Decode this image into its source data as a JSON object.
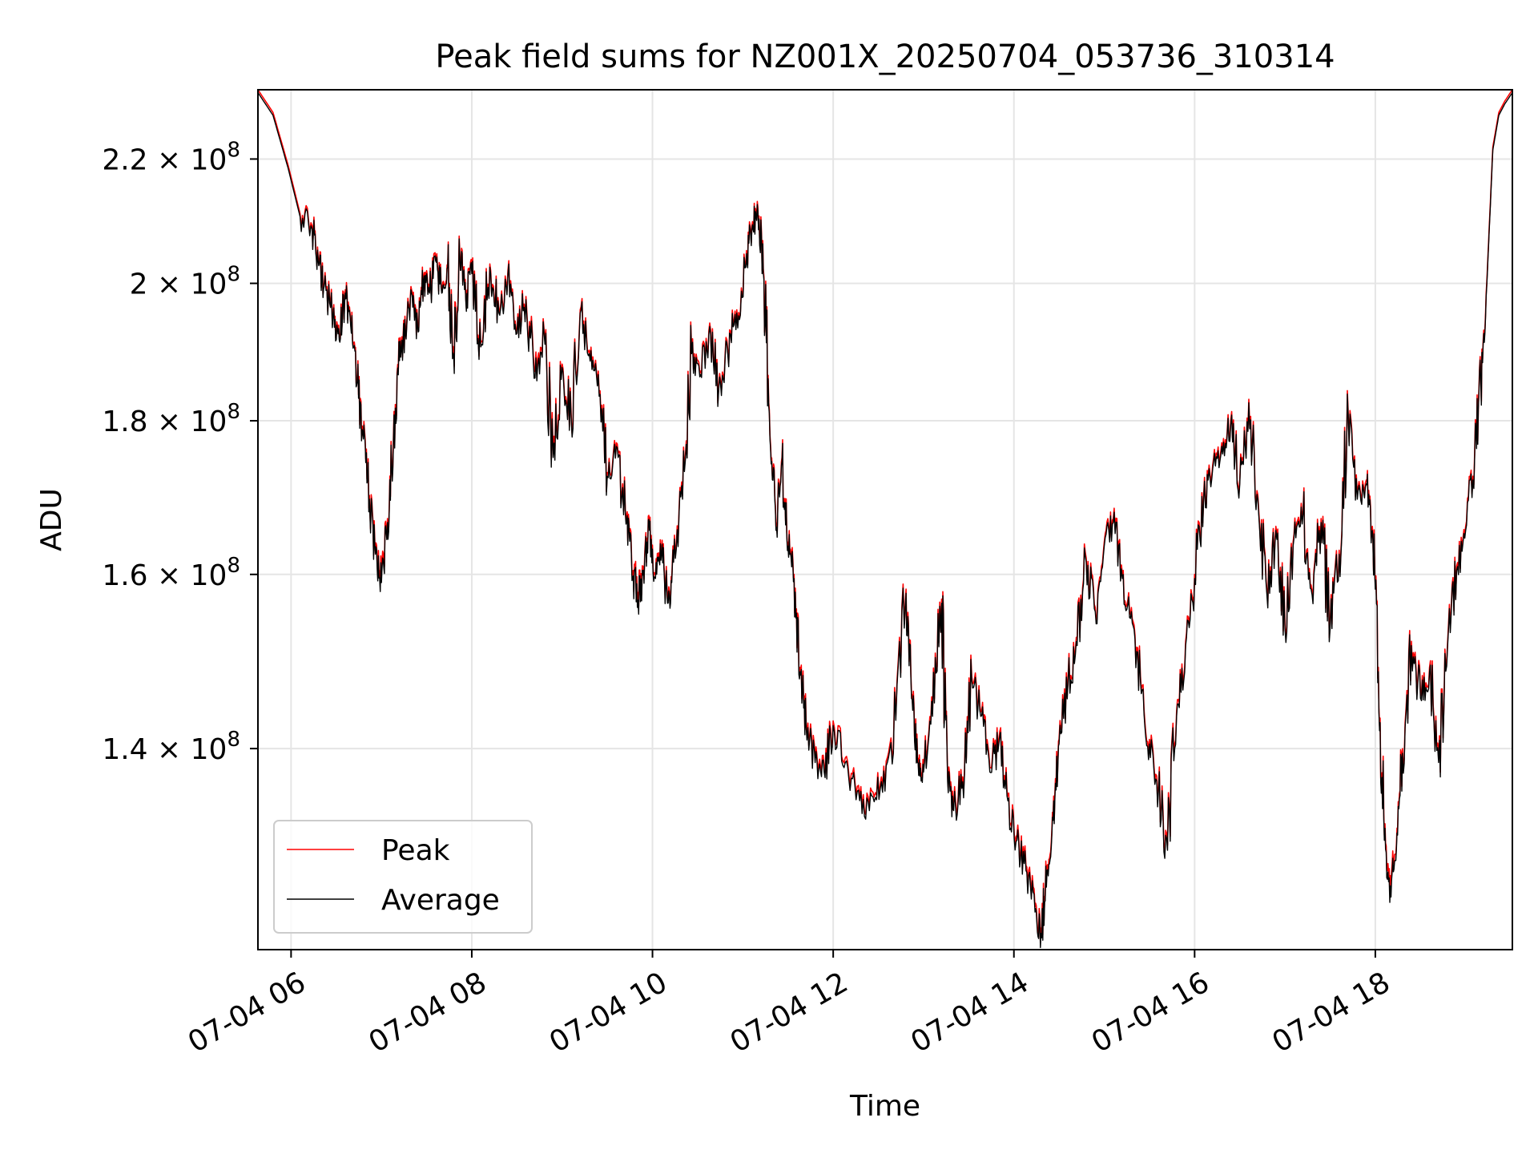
{
  "chart_data": {
    "type": "line",
    "title": "Peak field sums for NZ001X_20250704_053736_310314",
    "xlabel": "Time",
    "ylabel": "ADU",
    "y_scale": "log",
    "xlim": [
      "2025-07-04T05:38",
      "2025-07-04T19:31"
    ],
    "ylim": [
      120000000,
      232000000
    ],
    "grid": true,
    "legend_position": "lower-left",
    "x_ticks": [
      {
        "value": "2025-07-04T06:00",
        "label": "07-04 06"
      },
      {
        "value": "2025-07-04T08:00",
        "label": "07-04 08"
      },
      {
        "value": "2025-07-04T10:00",
        "label": "07-04 10"
      },
      {
        "value": "2025-07-04T12:00",
        "label": "07-04 12"
      },
      {
        "value": "2025-07-04T14:00",
        "label": "07-04 14"
      },
      {
        "value": "2025-07-04T16:00",
        "label": "07-04 16"
      },
      {
        "value": "2025-07-04T18:00",
        "label": "07-04 18"
      }
    ],
    "y_ticks": [
      {
        "value": 140000000,
        "mantissa": "1.4"
      },
      {
        "value": 160000000,
        "mantissa": "1.6"
      },
      {
        "value": 180000000,
        "mantissa": "1.8"
      },
      {
        "value": 200000000,
        "mantissa": "2"
      },
      {
        "value": 220000000,
        "mantissa": "2.2"
      }
    ],
    "y_tick_base": "10",
    "y_tick_exponent": "8",
    "series": [
      {
        "name": "Peak",
        "color": "#ff0000",
        "x": [
          "05:38",
          "05:48",
          "05:58",
          "06:06",
          "06:14",
          "06:18",
          "06:22",
          "06:28",
          "06:32",
          "06:36",
          "06:40",
          "06:44",
          "06:48",
          "06:52",
          "06:56",
          "07:00",
          "07:04",
          "07:08",
          "07:12",
          "07:16",
          "07:20",
          "07:24",
          "07:28",
          "07:32",
          "07:36",
          "07:40",
          "07:44",
          "07:48",
          "07:52",
          "07:56",
          "08:00",
          "08:06",
          "08:12",
          "08:18",
          "08:24",
          "08:30",
          "08:36",
          "08:42",
          "08:48",
          "08:54",
          "09:00",
          "09:06",
          "09:12",
          "09:18",
          "09:24",
          "09:30",
          "09:36",
          "09:42",
          "09:46",
          "09:50",
          "09:54",
          "09:58",
          "10:02",
          "10:06",
          "10:10",
          "10:14",
          "10:20",
          "10:26",
          "10:32",
          "10:38",
          "10:44",
          "10:50",
          "10:56",
          "11:02",
          "11:06",
          "11:10",
          "11:14",
          "11:18",
          "11:22",
          "11:26",
          "11:30",
          "11:34",
          "11:38",
          "11:42",
          "11:48",
          "11:54",
          "12:00",
          "12:08",
          "12:16",
          "12:24",
          "12:32",
          "12:40",
          "12:48",
          "12:52",
          "12:56",
          "13:00",
          "13:06",
          "13:12",
          "13:16",
          "13:20",
          "13:26",
          "13:32",
          "13:38",
          "13:44",
          "13:50",
          "13:56",
          "14:02",
          "14:08",
          "14:14",
          "14:18",
          "14:22",
          "14:26",
          "14:30",
          "14:36",
          "14:42",
          "14:48",
          "14:54",
          "15:00",
          "15:06",
          "15:12",
          "15:18",
          "15:24",
          "15:30",
          "15:36",
          "15:42",
          "15:48",
          "15:54",
          "16:00",
          "16:06",
          "16:12",
          "16:18",
          "16:24",
          "16:30",
          "16:36",
          "16:42",
          "16:48",
          "16:54",
          "17:00",
          "17:06",
          "17:12",
          "17:18",
          "17:24",
          "17:30",
          "17:36",
          "17:42",
          "17:48",
          "17:54",
          "17:58",
          "18:02",
          "18:06",
          "18:10",
          "18:14",
          "18:18",
          "18:24",
          "18:30",
          "18:36",
          "18:42",
          "18:48",
          "18:54",
          "19:00",
          "19:06",
          "19:10",
          "19:14",
          "19:18",
          "19:22",
          "19:26",
          "19:31"
        ],
        "y": [
          232000000,
          228000000,
          219000000,
          211000000,
          209000000,
          204000000,
          200000000,
          196000000,
          192000000,
          199000000,
          193000000,
          186000000,
          178000000,
          170000000,
          163000000,
          160000000,
          167000000,
          178000000,
          189000000,
          193000000,
          199000000,
          194000000,
          201000000,
          199000000,
          204000000,
          199000000,
          203000000,
          190000000,
          205000000,
          198000000,
          202000000,
          191000000,
          203000000,
          196000000,
          202000000,
          193000000,
          198000000,
          187000000,
          193000000,
          176000000,
          188000000,
          181000000,
          196000000,
          190000000,
          187000000,
          173000000,
          177000000,
          168000000,
          163000000,
          157000000,
          161000000,
          166000000,
          160000000,
          163000000,
          157000000,
          162000000,
          170000000,
          190000000,
          187000000,
          194000000,
          185000000,
          190000000,
          196000000,
          203000000,
          209000000,
          212000000,
          201000000,
          178000000,
          166000000,
          175000000,
          164000000,
          160000000,
          149000000,
          143000000,
          139000000,
          138000000,
          143000000,
          139000000,
          136000000,
          134000000,
          137000000,
          140000000,
          157000000,
          146000000,
          139000000,
          138000000,
          144000000,
          157000000,
          137000000,
          134000000,
          137000000,
          148000000,
          144000000,
          138000000,
          141000000,
          135000000,
          131000000,
          128000000,
          124000000,
          122000000,
          128000000,
          133000000,
          141000000,
          148000000,
          152000000,
          162000000,
          156000000,
          164000000,
          167000000,
          160000000,
          156000000,
          148000000,
          141000000,
          136000000,
          130000000,
          144000000,
          152000000,
          160000000,
          170000000,
          174000000,
          177000000,
          180000000,
          172000000,
          183000000,
          170000000,
          158000000,
          166000000,
          154000000,
          165000000,
          168000000,
          158000000,
          167000000,
          154000000,
          163000000,
          181000000,
          170000000,
          172000000,
          166000000,
          149000000,
          131000000,
          127000000,
          130000000,
          140000000,
          152000000,
          146000000,
          149000000,
          139000000,
          152000000,
          161000000,
          166000000,
          176000000,
          186000000,
          200000000,
          222000000,
          228000000,
          230000000,
          232000000
        ]
      },
      {
        "name": "Average",
        "color": "#000000",
        "x": [
          "05:38",
          "05:48",
          "05:58",
          "06:06",
          "06:14",
          "06:18",
          "06:22",
          "06:28",
          "06:32",
          "06:36",
          "06:40",
          "06:44",
          "06:48",
          "06:52",
          "06:56",
          "07:00",
          "07:04",
          "07:08",
          "07:12",
          "07:16",
          "07:20",
          "07:24",
          "07:28",
          "07:32",
          "07:36",
          "07:40",
          "07:44",
          "07:48",
          "07:52",
          "07:56",
          "08:00",
          "08:06",
          "08:12",
          "08:18",
          "08:24",
          "08:30",
          "08:36",
          "08:42",
          "08:48",
          "08:54",
          "09:00",
          "09:06",
          "09:12",
          "09:18",
          "09:24",
          "09:30",
          "09:36",
          "09:42",
          "09:46",
          "09:50",
          "09:54",
          "09:58",
          "10:02",
          "10:06",
          "10:10",
          "10:14",
          "10:20",
          "10:26",
          "10:32",
          "10:38",
          "10:44",
          "10:50",
          "10:56",
          "11:02",
          "11:06",
          "11:10",
          "11:14",
          "11:18",
          "11:22",
          "11:26",
          "11:30",
          "11:34",
          "11:38",
          "11:42",
          "11:48",
          "11:54",
          "12:00",
          "12:08",
          "12:16",
          "12:24",
          "12:32",
          "12:40",
          "12:48",
          "12:52",
          "12:56",
          "13:00",
          "13:06",
          "13:12",
          "13:16",
          "13:20",
          "13:26",
          "13:32",
          "13:38",
          "13:44",
          "13:50",
          "13:56",
          "14:02",
          "14:08",
          "14:14",
          "14:18",
          "14:22",
          "14:26",
          "14:30",
          "14:36",
          "14:42",
          "14:48",
          "14:54",
          "15:00",
          "15:06",
          "15:12",
          "15:18",
          "15:24",
          "15:30",
          "15:36",
          "15:42",
          "15:48",
          "15:54",
          "16:00",
          "16:06",
          "16:12",
          "16:18",
          "16:24",
          "16:30",
          "16:36",
          "16:42",
          "16:48",
          "16:54",
          "17:00",
          "17:06",
          "17:12",
          "17:18",
          "17:24",
          "17:30",
          "17:36",
          "17:42",
          "17:48",
          "17:54",
          "17:58",
          "18:02",
          "18:06",
          "18:10",
          "18:14",
          "18:18",
          "18:24",
          "18:30",
          "18:36",
          "18:42",
          "18:48",
          "18:54",
          "19:00",
          "19:06",
          "19:10",
          "19:14",
          "19:18",
          "19:22",
          "19:26",
          "19:31"
        ],
        "y": [
          231500000,
          227500000,
          218500000,
          210500000,
          208500000,
          203500000,
          199500000,
          195500000,
          191500000,
          198500000,
          192500000,
          185500000,
          177500000,
          169500000,
          162500000,
          159000000,
          166500000,
          177500000,
          188500000,
          192500000,
          198500000,
          193500000,
          200500000,
          198500000,
          203500000,
          198500000,
          202500000,
          189000000,
          204500000,
          197500000,
          201500000,
          190500000,
          202500000,
          195500000,
          201500000,
          192500000,
          197500000,
          186000000,
          192500000,
          175000000,
          187500000,
          180500000,
          195500000,
          189500000,
          186500000,
          172500000,
          176500000,
          167500000,
          162500000,
          156000000,
          160500000,
          165500000,
          159500000,
          162500000,
          156500000,
          161500000,
          169500000,
          189500000,
          186500000,
          193500000,
          184500000,
          189500000,
          195500000,
          202500000,
          208500000,
          211500000,
          200500000,
          177500000,
          165500000,
          174500000,
          163500000,
          159500000,
          148500000,
          142500000,
          138500000,
          137500000,
          142500000,
          138500000,
          135500000,
          133500000,
          136500000,
          139500000,
          156500000,
          145500000,
          138500000,
          137500000,
          143500000,
          156500000,
          136500000,
          133500000,
          136500000,
          147500000,
          143500000,
          137500000,
          140500000,
          134500000,
          130500000,
          127500000,
          123500000,
          121500000,
          127500000,
          132500000,
          140500000,
          147500000,
          151500000,
          161500000,
          155500000,
          163500000,
          166500000,
          159500000,
          155500000,
          147500000,
          140500000,
          135500000,
          129500000,
          143500000,
          151500000,
          159500000,
          169500000,
          173500000,
          176500000,
          179500000,
          171500000,
          182500000,
          169500000,
          157500000,
          165500000,
          153500000,
          164500000,
          167500000,
          157500000,
          166500000,
          153500000,
          162500000,
          180500000,
          169500000,
          171500000,
          165500000,
          148500000,
          130500000,
          126000000,
          129500000,
          139500000,
          151500000,
          145500000,
          148500000,
          138500000,
          151500000,
          160500000,
          165500000,
          175500000,
          185500000,
          199500000,
          221500000,
          227500000,
          229500000,
          231500000
        ]
      }
    ]
  }
}
